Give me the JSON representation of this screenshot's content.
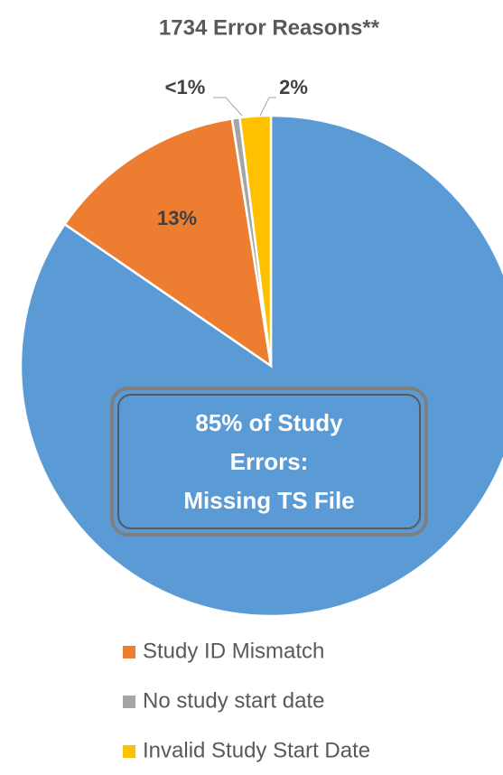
{
  "chart_data": {
    "type": "pie",
    "title": "1734 Error Reasons**",
    "categories": [
      null,
      "Study ID Mismatch",
      "No study start date",
      "Invalid Study Start Date"
    ],
    "values": [
      85,
      13,
      0.5,
      2
    ],
    "value_labels": [
      null,
      "13%",
      "<1%",
      "2%"
    ],
    "colors": [
      "#5b9bd5",
      "#ed7d31",
      "#a5a5a5",
      "#ffc000"
    ],
    "annotation": [
      "85% of Study",
      "Errors:",
      "Missing TS File"
    ]
  }
}
